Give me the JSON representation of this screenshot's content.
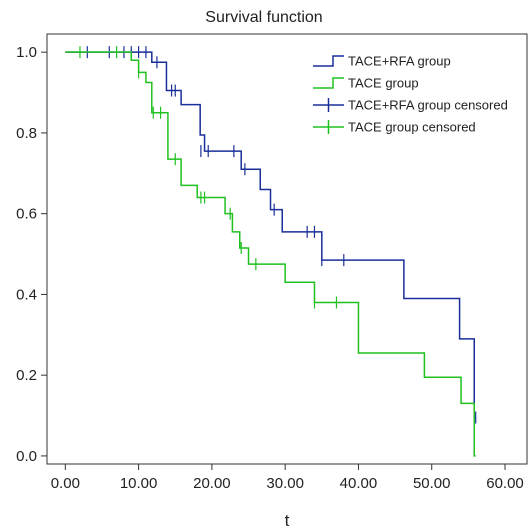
{
  "chart_data": {
    "type": "line",
    "title": "Survival function",
    "xlabel": "t",
    "ylabel": "",
    "xlim": [
      -2.5,
      63
    ],
    "ylim": [
      -0.02,
      1.045
    ],
    "xticks": [
      0,
      10,
      20,
      30,
      40,
      50,
      60
    ],
    "xtick_labels": [
      "0.00",
      "10.00",
      "20.00",
      "30.00",
      "40.00",
      "50.00",
      "60.00"
    ],
    "yticks": [
      0,
      0.2,
      0.4,
      0.6,
      0.8,
      1.0
    ],
    "ytick_labels": [
      "0.0",
      "0.2",
      "0.4",
      "0.6",
      "0.8",
      "1.0"
    ],
    "grid": false,
    "legend_position": "top-right",
    "legend": [
      {
        "label": "TACE+RFA group",
        "series": 0,
        "kind": "line"
      },
      {
        "label": "TACE group",
        "series": 1,
        "kind": "line"
      },
      {
        "label": "TACE+RFA group censored",
        "series": 0,
        "kind": "censor"
      },
      {
        "label": "TACE group censored",
        "series": 1,
        "kind": "censor"
      }
    ],
    "series": [
      {
        "name": "TACE+RFA group",
        "color": "#1a2f9a",
        "steps": [
          [
            0,
            1.0
          ],
          [
            11.8,
            0.975
          ],
          [
            13.8,
            0.905
          ],
          [
            15.8,
            0.87
          ],
          [
            18.4,
            0.795
          ],
          [
            19,
            0.755
          ],
          [
            24,
            0.71
          ],
          [
            26.6,
            0.66
          ],
          [
            28,
            0.61
          ],
          [
            29.6,
            0.555
          ],
          [
            35,
            0.485
          ],
          [
            46.2,
            0.39
          ],
          [
            53.8,
            0.29
          ],
          [
            55.8,
            0.095
          ]
        ],
        "end_x": 56,
        "censored": [
          [
            3,
            1.0
          ],
          [
            6,
            1.0
          ],
          [
            8,
            1.0
          ],
          [
            9,
            1.0
          ],
          [
            10,
            1.0
          ],
          [
            11,
            1.0
          ],
          [
            12.5,
            0.975
          ],
          [
            14.5,
            0.905
          ],
          [
            15,
            0.905
          ],
          [
            18.5,
            0.755
          ],
          [
            19.5,
            0.755
          ],
          [
            23,
            0.755
          ],
          [
            24.5,
            0.71
          ],
          [
            28.5,
            0.61
          ],
          [
            33,
            0.555
          ],
          [
            34,
            0.555
          ],
          [
            35,
            0.485
          ],
          [
            38,
            0.485
          ],
          [
            56,
            0.095
          ]
        ]
      },
      {
        "name": "TACE group",
        "color": "#1fc01f",
        "steps": [
          [
            0,
            1.0
          ],
          [
            9,
            0.98
          ],
          [
            10,
            0.95
          ],
          [
            11,
            0.925
          ],
          [
            11.8,
            0.85
          ],
          [
            14,
            0.735
          ],
          [
            15.8,
            0.67
          ],
          [
            18,
            0.64
          ],
          [
            21.8,
            0.6
          ],
          [
            22.8,
            0.555
          ],
          [
            23.8,
            0.515
          ],
          [
            25,
            0.475
          ],
          [
            30,
            0.43
          ],
          [
            34,
            0.38
          ],
          [
            40,
            0.255
          ],
          [
            49,
            0.195
          ],
          [
            54,
            0.13
          ],
          [
            55.8,
            0.0
          ]
        ],
        "end_x": 56,
        "censored": [
          [
            2,
            1.0
          ],
          [
            7,
            1.0
          ],
          [
            10,
            0.95
          ],
          [
            12,
            0.85
          ],
          [
            13,
            0.85
          ],
          [
            15,
            0.735
          ],
          [
            18.5,
            0.64
          ],
          [
            19,
            0.64
          ],
          [
            22.5,
            0.6
          ],
          [
            24,
            0.515
          ],
          [
            26,
            0.475
          ],
          [
            34,
            0.38
          ],
          [
            37,
            0.38
          ]
        ]
      }
    ]
  }
}
